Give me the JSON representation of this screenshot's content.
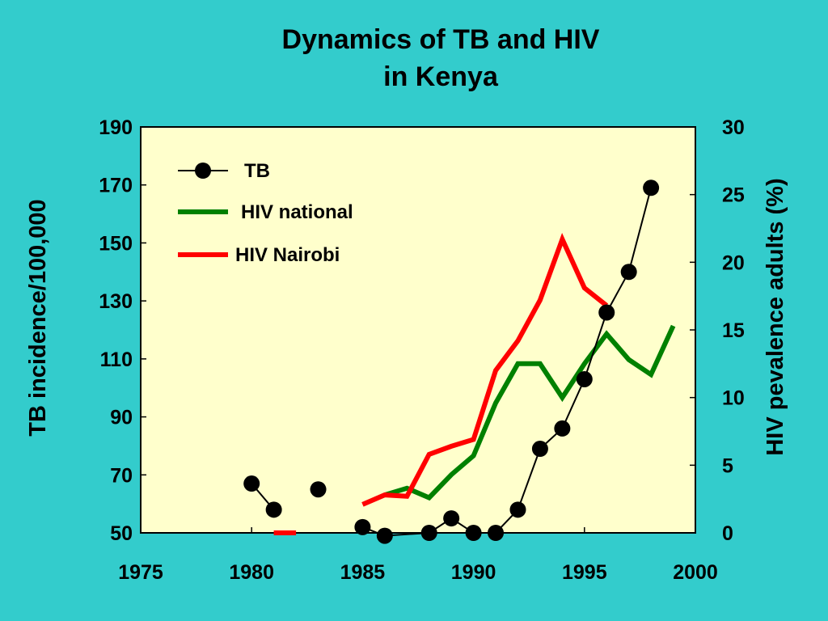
{
  "chart_data": {
    "type": "line",
    "title_line1": "Dynamics of TB and HIV",
    "title_line2": "in Kenya",
    "xlabel": "",
    "y_left_label": "TB incidence/100,000",
    "y_right_label": "HIV pevalence adults (%)",
    "xlim": [
      1975,
      2000
    ],
    "y_left_lim": [
      50,
      190
    ],
    "y_right_lim": [
      0,
      30
    ],
    "x_ticks": [
      1975,
      1980,
      1985,
      1990,
      1995,
      2000
    ],
    "y_left_ticks": [
      50,
      70,
      90,
      110,
      130,
      150,
      170,
      190
    ],
    "y_right_ticks": [
      0,
      5,
      10,
      15,
      20,
      25,
      30
    ],
    "grid": false,
    "legend_position": "top-left",
    "series": [
      {
        "name": "TB",
        "axis": "left",
        "color": "#000000",
        "marker": "circle",
        "segments": [
          [
            [
              1980,
              67
            ],
            [
              1981,
              58
            ]
          ],
          [
            [
              1983,
              65
            ]
          ],
          [
            [
              1985,
              52
            ],
            [
              1986,
              49
            ],
            [
              1988,
              50
            ],
            [
              1989,
              55
            ],
            [
              1990,
              50
            ],
            [
              1991,
              50
            ],
            [
              1992,
              58
            ],
            [
              1993,
              79
            ],
            [
              1994,
              86
            ],
            [
              1995,
              103
            ],
            [
              1996,
              126
            ],
            [
              1997,
              140
            ],
            [
              1998,
              169
            ]
          ]
        ]
      },
      {
        "name": "HIV national",
        "axis": "right",
        "color": "#008000",
        "marker": "none",
        "segments": [
          [
            [
              1986,
              2.8
            ],
            [
              1987,
              3.3
            ],
            [
              1988,
              2.6
            ],
            [
              1989,
              4.3
            ],
            [
              1990,
              5.7
            ],
            [
              1991,
              9.6
            ],
            [
              1992,
              12.5
            ],
            [
              1993,
              12.5
            ],
            [
              1994,
              10.0
            ],
            [
              1995,
              12.5
            ],
            [
              1996,
              14.7
            ],
            [
              1997,
              12.8
            ],
            [
              1998,
              11.7
            ],
            [
              1999,
              15.3
            ]
          ]
        ]
      },
      {
        "name": "HIV Nairobi",
        "axis": "right",
        "color": "#ff0000",
        "marker": "none",
        "segments": [
          [
            [
              1981,
              0
            ],
            [
              1982,
              0
            ]
          ],
          [
            [
              1985,
              2.1
            ],
            [
              1986,
              2.8
            ],
            [
              1987,
              2.7
            ],
            [
              1988,
              5.8
            ],
            [
              1989,
              6.4
            ],
            [
              1990,
              6.9
            ],
            [
              1991,
              12.0
            ],
            [
              1992,
              14.2
            ],
            [
              1993,
              17.2
            ],
            [
              1994,
              21.7
            ],
            [
              1995,
              18.1
            ],
            [
              1996,
              16.8
            ]
          ]
        ]
      }
    ]
  }
}
